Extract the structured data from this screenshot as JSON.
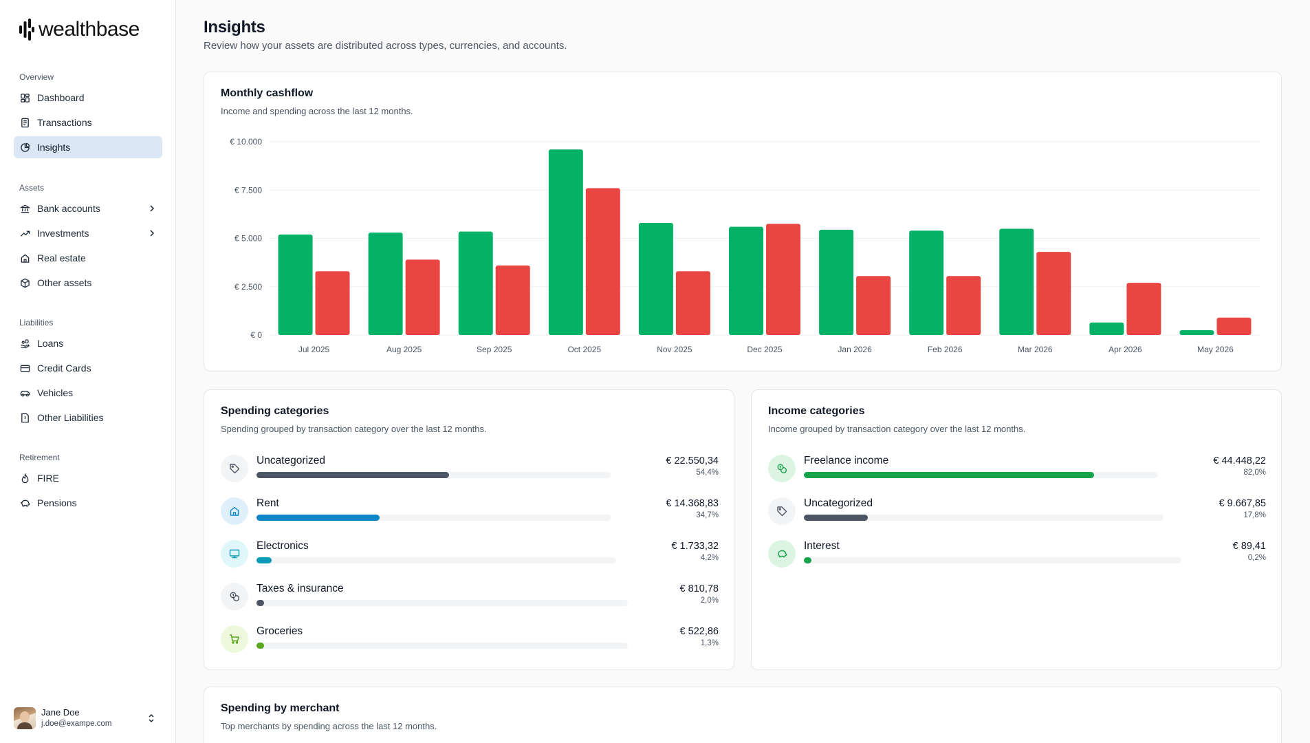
{
  "brand": {
    "name": "wealthbase"
  },
  "sidebar": {
    "groups": [
      {
        "heading": "Overview",
        "items": [
          {
            "label": "Dashboard",
            "icon": "dashboard-icon"
          },
          {
            "label": "Transactions",
            "icon": "receipt-icon"
          },
          {
            "label": "Insights",
            "icon": "pie-chart-icon",
            "active": true
          }
        ]
      },
      {
        "heading": "Assets",
        "items": [
          {
            "label": "Bank accounts",
            "icon": "bank-icon",
            "expandable": true
          },
          {
            "label": "Investments",
            "icon": "trending-up-icon",
            "expandable": true
          },
          {
            "label": "Real estate",
            "icon": "home-icon"
          },
          {
            "label": "Other assets",
            "icon": "box-icon"
          }
        ]
      },
      {
        "heading": "Liabilities",
        "items": [
          {
            "label": "Loans",
            "icon": "hand-coins-icon"
          },
          {
            "label": "Credit Cards",
            "icon": "credit-card-icon"
          },
          {
            "label": "Vehicles",
            "icon": "car-icon"
          },
          {
            "label": "Other Liabilities",
            "icon": "file-alert-icon"
          }
        ]
      },
      {
        "heading": "Retirement",
        "items": [
          {
            "label": "FIRE",
            "icon": "flame-icon"
          },
          {
            "label": "Pensions",
            "icon": "piggy-bank-icon"
          }
        ]
      }
    ],
    "user": {
      "name": "Jane Doe",
      "email": "j.doe@exampe.com"
    }
  },
  "page": {
    "title": "Insights",
    "subtitle": "Review how your assets are distributed across types, currencies, and accounts."
  },
  "cashflow": {
    "title": "Monthly cashflow",
    "subtitle": "Income and spending across the last 12 months."
  },
  "chart_data": {
    "type": "bar",
    "categories": [
      "Jul 2025",
      "Aug 2025",
      "Sep 2025",
      "Oct 2025",
      "Nov 2025",
      "Dec 2025",
      "Jan 2026",
      "Feb 2026",
      "Mar 2026",
      "Apr 2026",
      "May 2026"
    ],
    "series": [
      {
        "values": [
          5200,
          5300,
          5350,
          9600,
          5800,
          5600,
          5450,
          5400,
          5500,
          650,
          250
        ],
        "color": "#04b267"
      },
      {
        "values": [
          3300,
          3900,
          3600,
          7600,
          3300,
          5750,
          3050,
          3050,
          4300,
          2700,
          900
        ],
        "color": "#e94643"
      }
    ],
    "ylim": [
      0,
      10000
    ],
    "yticks": [
      0,
      2500,
      5000,
      7500,
      10000
    ],
    "ytick_labels": [
      "€ 0",
      "€ 2.500",
      "€ 5.000",
      "€ 7.500",
      "€ 10.000"
    ],
    "grid": true,
    "xlabel": "",
    "ylabel": ""
  },
  "spending": {
    "title": "Spending categories",
    "subtitle": "Spending grouped by transaction category over the last 12 months.",
    "items": [
      {
        "name": "Uncategorized",
        "amount": "€ 22.550,34",
        "pct_label": "54,4%",
        "share": 0.544,
        "color": "#4b5563",
        "icon": "tag-icon",
        "icon_bg": "#f3f4f6",
        "icon_fg": "#4b5563"
      },
      {
        "name": "Rent",
        "amount": "€ 14.368,83",
        "pct_label": "34,7%",
        "share": 0.347,
        "color": "#0b86c9",
        "icon": "home-icon",
        "icon_bg": "#e0f0fb",
        "icon_fg": "#0b86c9"
      },
      {
        "name": "Electronics",
        "amount": "€ 1.733,32",
        "pct_label": "4,2%",
        "share": 0.042,
        "color": "#0e9bb8",
        "icon": "monitor-icon",
        "icon_bg": "#dff6fb",
        "icon_fg": "#0e9bb8"
      },
      {
        "name": "Taxes & insurance",
        "amount": "€ 810,78",
        "pct_label": "2,0%",
        "share": 0.02,
        "color": "#4b5563",
        "icon": "coins-icon",
        "icon_bg": "#f3f4f6",
        "icon_fg": "#4b5563"
      },
      {
        "name": "Groceries",
        "amount": "€ 522,86",
        "pct_label": "1,3%",
        "share": 0.013,
        "color": "#5aa61f",
        "icon": "cart-icon",
        "icon_bg": "#eef8dc",
        "icon_fg": "#5aa61f"
      }
    ]
  },
  "income": {
    "title": "Income categories",
    "subtitle": "Income grouped by transaction category over the last 12 months.",
    "items": [
      {
        "name": "Freelance income",
        "amount": "€ 44.448,22",
        "pct_label": "82,0%",
        "share": 0.82,
        "color": "#16a34a",
        "icon": "coins-icon",
        "icon_bg": "#dcf5e3",
        "icon_fg": "#16a34a"
      },
      {
        "name": "Uncategorized",
        "amount": "€ 9.667,85",
        "pct_label": "17,8%",
        "share": 0.178,
        "color": "#4b5563",
        "icon": "tag-icon",
        "icon_bg": "#f3f4f6",
        "icon_fg": "#4b5563"
      },
      {
        "name": "Interest",
        "amount": "€ 89,41",
        "pct_label": "0,2%",
        "share": 0.002,
        "color": "#16a34a",
        "icon": "piggy-bank-icon",
        "icon_bg": "#dcf5e3",
        "icon_fg": "#16a34a"
      }
    ]
  },
  "merchant": {
    "title": "Spending by merchant",
    "subtitle": "Top merchants by spending across the last 12 months."
  }
}
